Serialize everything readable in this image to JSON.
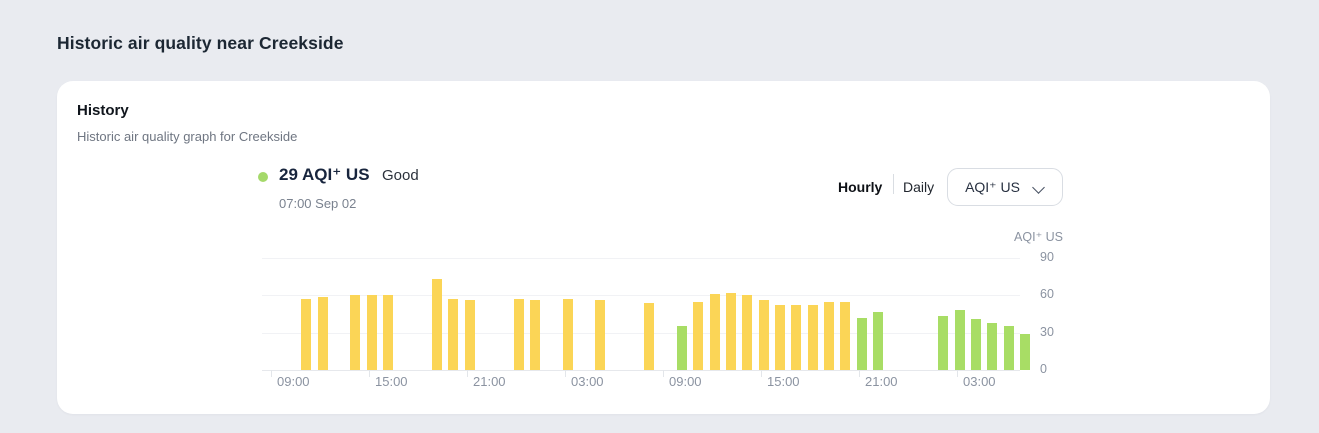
{
  "page": {
    "title": "Historic air quality near Creekside"
  },
  "card": {
    "title": "History",
    "subtitle": "Historic air quality graph for Creekside",
    "reading": {
      "value": "29 AQI⁺ US",
      "status": "Good",
      "timestamp": "07:00 Sep 02",
      "dot_color": "#a5d96a"
    },
    "controls": {
      "hourly_label": "Hourly",
      "daily_label": "Daily",
      "active_tab": "Hourly",
      "dropdown_selected": "AQI⁺ US",
      "dropdown_icon": "chevron-down-icon"
    }
  },
  "chart_data": {
    "type": "bar",
    "title": "Historic air quality graph for Creekside",
    "y_axis_label": "AQI⁺ US",
    "y_ticks": [
      0,
      30,
      60,
      90
    ],
    "ylim": [
      0,
      97
    ],
    "grid": true,
    "legend_position": "none",
    "bar_interval": "1 hour (missing hours shown as gaps)",
    "x_tick_labels": [
      "09:00",
      "15:00",
      "21:00",
      "03:00",
      "09:00",
      "15:00",
      "21:00",
      "03:00"
    ],
    "x_tick_slots": [
      1,
      7,
      13,
      19,
      25,
      31,
      37,
      43
    ],
    "colors": {
      "good": "#a8dd65",
      "moderate": "#fbd556"
    },
    "bars": [
      {
        "s": 2,
        "t": "10:00",
        "v": 57,
        "l": "moderate"
      },
      {
        "s": 3,
        "t": "11:00",
        "v": 59,
        "l": "moderate"
      },
      {
        "s": 5,
        "t": "13:00",
        "v": 60,
        "l": "moderate"
      },
      {
        "s": 6,
        "t": "14:00",
        "v": 60,
        "l": "moderate"
      },
      {
        "s": 7,
        "t": "15:00",
        "v": 60,
        "l": "moderate"
      },
      {
        "s": 10,
        "t": "18:00",
        "v": 73,
        "l": "moderate"
      },
      {
        "s": 11,
        "t": "19:00",
        "v": 57,
        "l": "moderate"
      },
      {
        "s": 12,
        "t": "20:00",
        "v": 56,
        "l": "moderate"
      },
      {
        "s": 15,
        "t": "23:00",
        "v": 57,
        "l": "moderate"
      },
      {
        "s": 16,
        "t": "00:00",
        "v": 56,
        "l": "moderate"
      },
      {
        "s": 18,
        "t": "02:00",
        "v": 57,
        "l": "moderate"
      },
      {
        "s": 20,
        "t": "04:00",
        "v": 56,
        "l": "moderate"
      },
      {
        "s": 23,
        "t": "07:00",
        "v": 54,
        "l": "moderate"
      },
      {
        "s": 25,
        "t": "09:00",
        "v": 35,
        "l": "good"
      },
      {
        "s": 26,
        "t": "10:00",
        "v": 55,
        "l": "moderate"
      },
      {
        "s": 27,
        "t": "11:00",
        "v": 61,
        "l": "moderate"
      },
      {
        "s": 28,
        "t": "12:00",
        "v": 62,
        "l": "moderate"
      },
      {
        "s": 29,
        "t": "13:00",
        "v": 60,
        "l": "moderate"
      },
      {
        "s": 30,
        "t": "14:00",
        "v": 56,
        "l": "moderate"
      },
      {
        "s": 31,
        "t": "15:00",
        "v": 52,
        "l": "moderate"
      },
      {
        "s": 32,
        "t": "16:00",
        "v": 52,
        "l": "moderate"
      },
      {
        "s": 33,
        "t": "17:00",
        "v": 52,
        "l": "moderate"
      },
      {
        "s": 34,
        "t": "18:00",
        "v": 55,
        "l": "moderate"
      },
      {
        "s": 35,
        "t": "19:00",
        "v": 55,
        "l": "moderate"
      },
      {
        "s": 36,
        "t": "20:00",
        "v": 42,
        "l": "good"
      },
      {
        "s": 37,
        "t": "21:00",
        "v": 47,
        "l": "good"
      },
      {
        "s": 41,
        "t": "01:00",
        "v": 43,
        "l": "good"
      },
      {
        "s": 42,
        "t": "02:00",
        "v": 48,
        "l": "good"
      },
      {
        "s": 43,
        "t": "03:00",
        "v": 41,
        "l": "good"
      },
      {
        "s": 44,
        "t": "04:00",
        "v": 38,
        "l": "good"
      },
      {
        "s": 45,
        "t": "05:00",
        "v": 35,
        "l": "good"
      },
      {
        "s": 46,
        "t": "06:00",
        "v": 29,
        "l": "good"
      }
    ]
  }
}
